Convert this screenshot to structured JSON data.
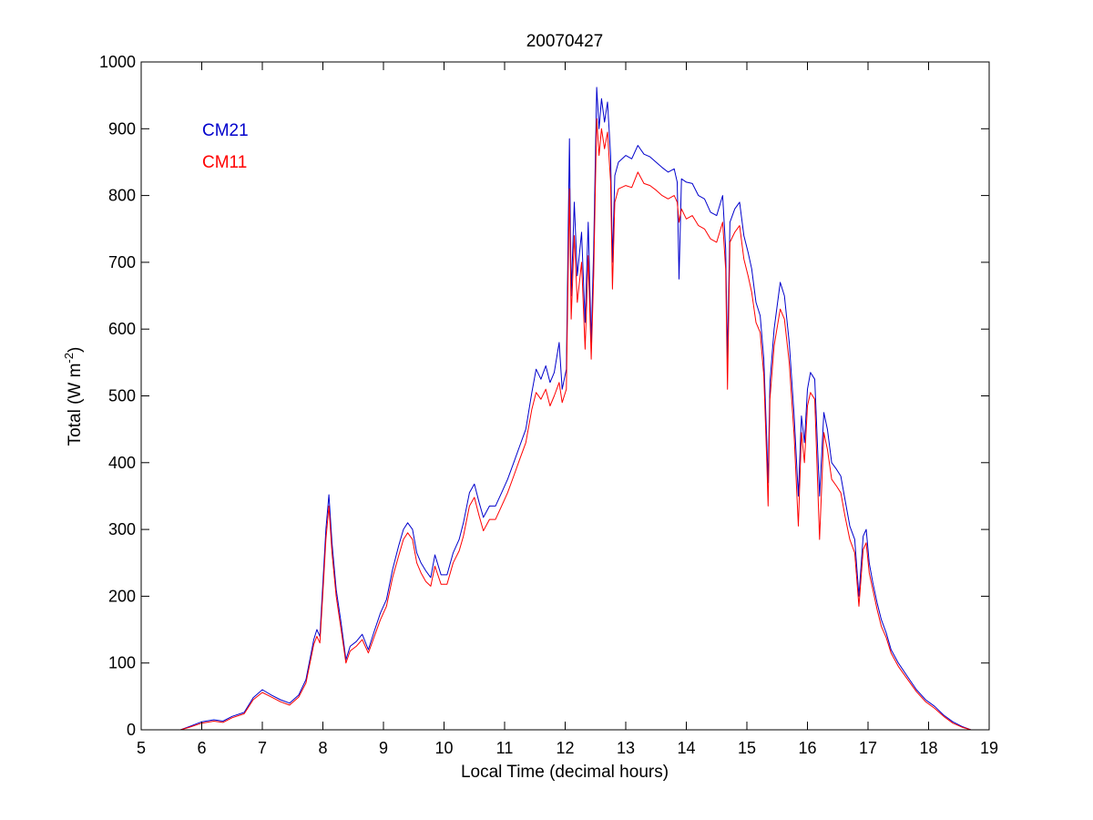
{
  "chart_data": {
    "type": "line",
    "title": "20070427",
    "xlabel": "Local Time (decimal hours)",
    "ylabel": "Total (W m",
    "ylabel_sup": "-2",
    "ylabel_end": ")",
    "xlim": [
      5,
      19
    ],
    "ylim": [
      0,
      1000
    ],
    "xticks": [
      5,
      6,
      7,
      8,
      9,
      10,
      11,
      12,
      13,
      14,
      15,
      16,
      17,
      18,
      19
    ],
    "yticks": [
      0,
      100,
      200,
      300,
      400,
      500,
      600,
      700,
      800,
      900,
      1000
    ],
    "grid": false,
    "legend_position": "top-left",
    "series": [
      {
        "name": "CM21",
        "color": "#0000cc",
        "points": [
          [
            5.65,
            0
          ],
          [
            5.8,
            5
          ],
          [
            6.0,
            12
          ],
          [
            6.2,
            15
          ],
          [
            6.35,
            13
          ],
          [
            6.5,
            20
          ],
          [
            6.7,
            26
          ],
          [
            6.85,
            48
          ],
          [
            7.0,
            60
          ],
          [
            7.15,
            52
          ],
          [
            7.3,
            45
          ],
          [
            7.45,
            40
          ],
          [
            7.6,
            52
          ],
          [
            7.72,
            75
          ],
          [
            7.85,
            135
          ],
          [
            7.9,
            150
          ],
          [
            7.95,
            140
          ],
          [
            8.0,
            220
          ],
          [
            8.05,
            300
          ],
          [
            8.1,
            352
          ],
          [
            8.15,
            280
          ],
          [
            8.22,
            210
          ],
          [
            8.3,
            160
          ],
          [
            8.38,
            105
          ],
          [
            8.45,
            125
          ],
          [
            8.55,
            132
          ],
          [
            8.65,
            143
          ],
          [
            8.75,
            120
          ],
          [
            8.85,
            148
          ],
          [
            8.95,
            175
          ],
          [
            9.05,
            195
          ],
          [
            9.15,
            240
          ],
          [
            9.25,
            275
          ],
          [
            9.33,
            300
          ],
          [
            9.4,
            310
          ],
          [
            9.48,
            300
          ],
          [
            9.55,
            265
          ],
          [
            9.62,
            250
          ],
          [
            9.7,
            238
          ],
          [
            9.78,
            228
          ],
          [
            9.85,
            262
          ],
          [
            9.95,
            232
          ],
          [
            10.05,
            232
          ],
          [
            10.15,
            265
          ],
          [
            10.25,
            285
          ],
          [
            10.32,
            310
          ],
          [
            10.42,
            355
          ],
          [
            10.5,
            368
          ],
          [
            10.58,
            340
          ],
          [
            10.65,
            318
          ],
          [
            10.75,
            335
          ],
          [
            10.85,
            335
          ],
          [
            10.95,
            355
          ],
          [
            11.05,
            375
          ],
          [
            11.15,
            400
          ],
          [
            11.25,
            425
          ],
          [
            11.35,
            450
          ],
          [
            11.45,
            505
          ],
          [
            11.52,
            540
          ],
          [
            11.6,
            525
          ],
          [
            11.68,
            545
          ],
          [
            11.75,
            520
          ],
          [
            11.82,
            535
          ],
          [
            11.9,
            580
          ],
          [
            11.95,
            510
          ],
          [
            12.02,
            540
          ],
          [
            12.07,
            885
          ],
          [
            12.1,
            650
          ],
          [
            12.15,
            790
          ],
          [
            12.2,
            680
          ],
          [
            12.27,
            745
          ],
          [
            12.33,
            610
          ],
          [
            12.38,
            760
          ],
          [
            12.43,
            580
          ],
          [
            12.47,
            720
          ],
          [
            12.52,
            962
          ],
          [
            12.56,
            900
          ],
          [
            12.6,
            945
          ],
          [
            12.65,
            910
          ],
          [
            12.7,
            940
          ],
          [
            12.75,
            860
          ],
          [
            12.78,
            700
          ],
          [
            12.82,
            830
          ],
          [
            12.88,
            850
          ],
          [
            13.0,
            860
          ],
          [
            13.1,
            855
          ],
          [
            13.2,
            875
          ],
          [
            13.3,
            862
          ],
          [
            13.4,
            858
          ],
          [
            13.5,
            850
          ],
          [
            13.6,
            842
          ],
          [
            13.7,
            835
          ],
          [
            13.8,
            840
          ],
          [
            13.85,
            820
          ],
          [
            13.88,
            675
          ],
          [
            13.92,
            825
          ],
          [
            14.0,
            820
          ],
          [
            14.1,
            818
          ],
          [
            14.2,
            800
          ],
          [
            14.3,
            795
          ],
          [
            14.4,
            775
          ],
          [
            14.5,
            770
          ],
          [
            14.6,
            800
          ],
          [
            14.65,
            720
          ],
          [
            14.68,
            555
          ],
          [
            14.72,
            760
          ],
          [
            14.8,
            780
          ],
          [
            14.88,
            790
          ],
          [
            14.95,
            740
          ],
          [
            15.02,
            715
          ],
          [
            15.08,
            690
          ],
          [
            15.15,
            640
          ],
          [
            15.22,
            620
          ],
          [
            15.28,
            555
          ],
          [
            15.33,
            430
          ],
          [
            15.35,
            370
          ],
          [
            15.38,
            520
          ],
          [
            15.45,
            600
          ],
          [
            15.55,
            670
          ],
          [
            15.62,
            650
          ],
          [
            15.7,
            580
          ],
          [
            15.78,
            470
          ],
          [
            15.85,
            350
          ],
          [
            15.9,
            470
          ],
          [
            15.95,
            430
          ],
          [
            16.0,
            510
          ],
          [
            16.05,
            535
          ],
          [
            16.12,
            525
          ],
          [
            16.2,
            350
          ],
          [
            16.27,
            475
          ],
          [
            16.33,
            450
          ],
          [
            16.4,
            400
          ],
          [
            16.48,
            390
          ],
          [
            16.55,
            380
          ],
          [
            16.62,
            345
          ],
          [
            16.7,
            305
          ],
          [
            16.78,
            285
          ],
          [
            16.85,
            200
          ],
          [
            16.92,
            290
          ],
          [
            16.97,
            300
          ],
          [
            17.02,
            250
          ],
          [
            17.08,
            220
          ],
          [
            17.15,
            190
          ],
          [
            17.22,
            165
          ],
          [
            17.3,
            145
          ],
          [
            17.38,
            120
          ],
          [
            17.5,
            100
          ],
          [
            17.65,
            80
          ],
          [
            17.8,
            60
          ],
          [
            17.95,
            45
          ],
          [
            18.1,
            35
          ],
          [
            18.25,
            22
          ],
          [
            18.4,
            12
          ],
          [
            18.55,
            5
          ],
          [
            18.7,
            0
          ]
        ]
      },
      {
        "name": "CM11",
        "color": "#ff0000",
        "points": [
          [
            5.65,
            0
          ],
          [
            5.8,
            4
          ],
          [
            6.0,
            10
          ],
          [
            6.2,
            13
          ],
          [
            6.35,
            11
          ],
          [
            6.5,
            18
          ],
          [
            6.7,
            24
          ],
          [
            6.85,
            45
          ],
          [
            7.0,
            56
          ],
          [
            7.15,
            49
          ],
          [
            7.3,
            42
          ],
          [
            7.45,
            37
          ],
          [
            7.6,
            49
          ],
          [
            7.72,
            70
          ],
          [
            7.85,
            128
          ],
          [
            7.9,
            140
          ],
          [
            7.95,
            130
          ],
          [
            8.0,
            205
          ],
          [
            8.05,
            285
          ],
          [
            8.1,
            335
          ],
          [
            8.15,
            265
          ],
          [
            8.22,
            200
          ],
          [
            8.3,
            150
          ],
          [
            8.38,
            100
          ],
          [
            8.45,
            118
          ],
          [
            8.55,
            125
          ],
          [
            8.65,
            135
          ],
          [
            8.75,
            115
          ],
          [
            8.85,
            140
          ],
          [
            8.95,
            165
          ],
          [
            9.05,
            185
          ],
          [
            9.15,
            228
          ],
          [
            9.25,
            260
          ],
          [
            9.33,
            285
          ],
          [
            9.4,
            295
          ],
          [
            9.48,
            285
          ],
          [
            9.55,
            250
          ],
          [
            9.62,
            235
          ],
          [
            9.7,
            222
          ],
          [
            9.78,
            215
          ],
          [
            9.85,
            245
          ],
          [
            9.95,
            218
          ],
          [
            10.05,
            218
          ],
          [
            10.15,
            250
          ],
          [
            10.25,
            268
          ],
          [
            10.32,
            290
          ],
          [
            10.42,
            335
          ],
          [
            10.5,
            348
          ],
          [
            10.58,
            320
          ],
          [
            10.65,
            298
          ],
          [
            10.75,
            315
          ],
          [
            10.85,
            315
          ],
          [
            10.95,
            335
          ],
          [
            11.05,
            355
          ],
          [
            11.15,
            380
          ],
          [
            11.25,
            405
          ],
          [
            11.35,
            430
          ],
          [
            11.45,
            480
          ],
          [
            11.52,
            505
          ],
          [
            11.6,
            495
          ],
          [
            11.68,
            510
          ],
          [
            11.75,
            485
          ],
          [
            11.82,
            500
          ],
          [
            11.9,
            520
          ],
          [
            11.95,
            490
          ],
          [
            12.02,
            510
          ],
          [
            12.07,
            810
          ],
          [
            12.1,
            615
          ],
          [
            12.15,
            740
          ],
          [
            12.2,
            640
          ],
          [
            12.27,
            700
          ],
          [
            12.33,
            570
          ],
          [
            12.38,
            710
          ],
          [
            12.43,
            555
          ],
          [
            12.47,
            680
          ],
          [
            12.52,
            915
          ],
          [
            12.56,
            860
          ],
          [
            12.6,
            900
          ],
          [
            12.65,
            870
          ],
          [
            12.7,
            895
          ],
          [
            12.75,
            820
          ],
          [
            12.78,
            660
          ],
          [
            12.82,
            790
          ],
          [
            12.88,
            810
          ],
          [
            13.0,
            815
          ],
          [
            13.1,
            812
          ],
          [
            13.2,
            835
          ],
          [
            13.3,
            818
          ],
          [
            13.4,
            815
          ],
          [
            13.5,
            808
          ],
          [
            13.6,
            800
          ],
          [
            13.7,
            795
          ],
          [
            13.8,
            800
          ],
          [
            13.85,
            790
          ],
          [
            13.88,
            760
          ],
          [
            13.92,
            780
          ],
          [
            14.0,
            765
          ],
          [
            14.1,
            770
          ],
          [
            14.2,
            755
          ],
          [
            14.3,
            750
          ],
          [
            14.4,
            735
          ],
          [
            14.5,
            730
          ],
          [
            14.6,
            760
          ],
          [
            14.65,
            690
          ],
          [
            14.68,
            510
          ],
          [
            14.72,
            730
          ],
          [
            14.8,
            745
          ],
          [
            14.88,
            755
          ],
          [
            14.95,
            705
          ],
          [
            15.02,
            680
          ],
          [
            15.08,
            655
          ],
          [
            15.15,
            610
          ],
          [
            15.22,
            595
          ],
          [
            15.28,
            530
          ],
          [
            15.33,
            400
          ],
          [
            15.35,
            335
          ],
          [
            15.38,
            495
          ],
          [
            15.45,
            575
          ],
          [
            15.55,
            630
          ],
          [
            15.62,
            615
          ],
          [
            15.7,
            550
          ],
          [
            15.78,
            440
          ],
          [
            15.85,
            305
          ],
          [
            15.9,
            445
          ],
          [
            15.95,
            400
          ],
          [
            16.0,
            485
          ],
          [
            16.05,
            505
          ],
          [
            16.12,
            495
          ],
          [
            16.2,
            285
          ],
          [
            16.27,
            445
          ],
          [
            16.33,
            420
          ],
          [
            16.4,
            375
          ],
          [
            16.48,
            365
          ],
          [
            16.55,
            355
          ],
          [
            16.62,
            320
          ],
          [
            16.7,
            285
          ],
          [
            16.78,
            265
          ],
          [
            16.85,
            185
          ],
          [
            16.92,
            270
          ],
          [
            16.97,
            280
          ],
          [
            17.02,
            235
          ],
          [
            17.08,
            210
          ],
          [
            17.15,
            180
          ],
          [
            17.22,
            155
          ],
          [
            17.3,
            138
          ],
          [
            17.38,
            115
          ],
          [
            17.5,
            95
          ],
          [
            17.65,
            76
          ],
          [
            17.8,
            57
          ],
          [
            17.95,
            42
          ],
          [
            18.1,
            32
          ],
          [
            18.25,
            20
          ],
          [
            18.4,
            10
          ],
          [
            18.55,
            4
          ],
          [
            18.7,
            0
          ]
        ]
      }
    ]
  }
}
